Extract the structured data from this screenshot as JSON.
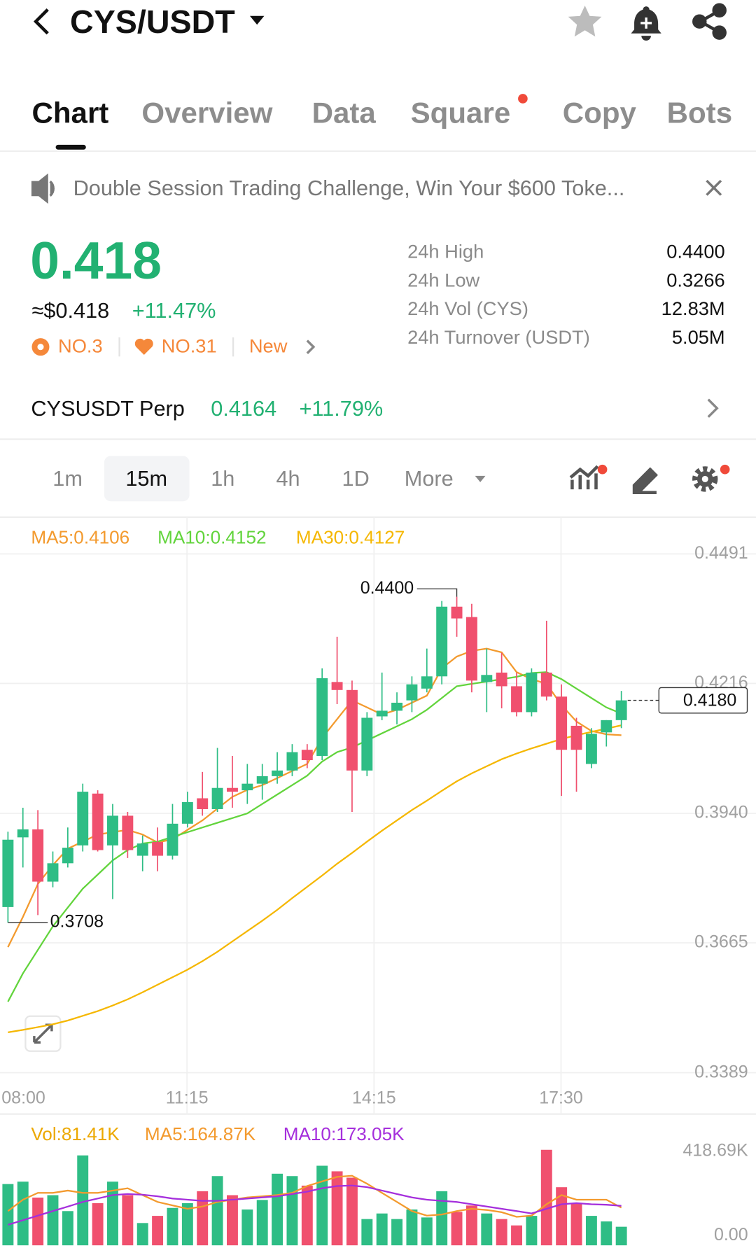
{
  "header": {
    "title": "CYS/USDT"
  },
  "tabs": {
    "items": [
      "Chart",
      "Overview",
      "Data",
      "Square",
      "Copy",
      "Bots"
    ],
    "active": 0
  },
  "banner": {
    "text": "Double Session Trading Challenge, Win Your $600 Toke..."
  },
  "price": {
    "last": "0.418",
    "usd": "≈$0.418",
    "change": "+11.47%",
    "badges": [
      "NO.3",
      "NO.31",
      "New"
    ]
  },
  "stats": [
    {
      "label": "24h High",
      "value": "0.4400"
    },
    {
      "label": "24h Low",
      "value": "0.3266"
    },
    {
      "label": "24h Vol (CYS)",
      "value": "12.83M"
    },
    {
      "label": "24h Turnover (USDT)",
      "value": "5.05M"
    }
  ],
  "perp": {
    "name": "CYSUSDT Perp",
    "price": "0.4164",
    "change": "+11.79%"
  },
  "intervals": {
    "items": [
      "1m",
      "15m",
      "1h",
      "4h",
      "1D",
      "More"
    ],
    "active": 1
  },
  "chart_data": [
    {
      "type": "candlestick",
      "up_color": "#2ebd85",
      "down_color": "#f0506e",
      "open": [
        0.3741,
        0.3889,
        0.3906,
        0.3795,
        0.3834,
        0.3872,
        0.3982,
        0.3872,
        0.3935,
        0.385,
        0.3879,
        0.385,
        0.3918,
        0.3972,
        0.3949,
        0.3994,
        0.3989,
        0.4003,
        0.4019,
        0.4031,
        0.4075,
        0.4062,
        0.4219,
        0.4202,
        0.4031,
        0.4146,
        0.4158,
        0.418,
        0.4205,
        0.4231,
        0.4379,
        0.4357,
        0.4219,
        0.4239,
        0.421,
        0.4155,
        0.4239,
        0.4188,
        0.4126,
        0.4045,
        0.4112,
        0.4138
      ],
      "high": [
        0.3901,
        0.3952,
        0.3947,
        0.3859,
        0.391,
        0.4003,
        0.3989,
        0.396,
        0.3943,
        0.3893,
        0.391,
        0.396,
        0.3986,
        0.4028,
        0.4079,
        0.4062,
        0.4045,
        0.4045,
        0.407,
        0.4087,
        0.4087,
        0.4248,
        0.4315,
        0.4222,
        0.4155,
        0.4239,
        0.4197,
        0.4231,
        0.429,
        0.4391,
        0.44,
        0.4385,
        0.429,
        0.4281,
        0.4239,
        0.4248,
        0.4349,
        0.4214,
        0.4143,
        0.4121,
        0.4138,
        0.42
      ],
      "low": [
        0.3708,
        0.3825,
        0.3724,
        0.3783,
        0.3825,
        0.3859,
        0.3859,
        0.3758,
        0.3845,
        0.3817,
        0.3817,
        0.3842,
        0.391,
        0.3935,
        0.3943,
        0.3952,
        0.396,
        0.3969,
        0.4003,
        0.4019,
        0.4036,
        0.4053,
        0.4172,
        0.3943,
        0.4019,
        0.4138,
        0.4129,
        0.4155,
        0.4197,
        0.4214,
        0.4315,
        0.4197,
        0.4155,
        0.4163,
        0.4146,
        0.4146,
        0.418,
        0.3977,
        0.3986,
        0.4036,
        0.4082,
        0.4121
      ],
      "close": [
        0.3884,
        0.3906,
        0.3795,
        0.3834,
        0.3867,
        0.3986,
        0.3862,
        0.3935,
        0.3862,
        0.3876,
        0.385,
        0.3918,
        0.3964,
        0.3949,
        0.3994,
        0.3986,
        0.4003,
        0.4019,
        0.4031,
        0.407,
        0.4053,
        0.4227,
        0.4202,
        0.4031,
        0.4143,
        0.4158,
        0.4175,
        0.4214,
        0.4231,
        0.4379,
        0.4354,
        0.4222,
        0.4234,
        0.421,
        0.4155,
        0.4239,
        0.4188,
        0.4075,
        0.4075,
        0.4109,
        0.4138,
        0.418
      ],
      "series": [
        {
          "name": "MA5:0.4106",
          "color": "#f39a2e",
          "values": [
            0.3656,
            0.372,
            0.379,
            0.383,
            0.3865,
            0.388,
            0.3895,
            0.39,
            0.3905,
            0.3895,
            0.3878,
            0.3885,
            0.3905,
            0.3925,
            0.395,
            0.3975,
            0.399,
            0.4,
            0.4015,
            0.403,
            0.4045,
            0.41,
            0.414,
            0.418,
            0.4165,
            0.415,
            0.416,
            0.4175,
            0.419,
            0.4248,
            0.4273,
            0.4285,
            0.429,
            0.4282,
            0.424,
            0.4225,
            0.4215,
            0.417,
            0.4135,
            0.4115,
            0.4108,
            0.4106
          ]
        },
        {
          "name": "MA10:0.4152",
          "color": "#62d43c",
          "values": [
            0.354,
            0.36,
            0.365,
            0.37,
            0.374,
            0.378,
            0.381,
            0.384,
            0.3862,
            0.3876,
            0.388,
            0.389,
            0.39,
            0.391,
            0.392,
            0.393,
            0.394,
            0.396,
            0.398,
            0.4,
            0.402,
            0.405,
            0.407,
            0.408,
            0.4095,
            0.411,
            0.4125,
            0.414,
            0.416,
            0.4185,
            0.421,
            0.4215,
            0.422,
            0.4225,
            0.423,
            0.4238,
            0.424,
            0.4225,
            0.4205,
            0.4185,
            0.4165,
            0.4152
          ]
        },
        {
          "name": "MA30:0.4127",
          "color": "#f5b700",
          "values": [
            0.3475,
            0.348,
            0.3486,
            0.3492,
            0.35,
            0.351,
            0.352,
            0.3532,
            0.3545,
            0.356,
            0.3576,
            0.3592,
            0.3608,
            0.3626,
            0.3646,
            0.3668,
            0.369,
            0.3712,
            0.3735,
            0.376,
            0.3784,
            0.3808,
            0.3833,
            0.3856,
            0.388,
            0.3903,
            0.3925,
            0.3947,
            0.3967,
            0.3988,
            0.4008,
            0.4025,
            0.404,
            0.4055,
            0.4067,
            0.4078,
            0.4088,
            0.4098,
            0.4106,
            0.4113,
            0.412,
            0.4127
          ]
        }
      ],
      "ylim": [
        0.3369,
        0.4569
      ],
      "yticks": [
        0.4491,
        0.4216,
        {
          "value": 0.394,
          "label": "0.3940"
        },
        0.3665,
        0.3389
      ],
      "xticks": [
        "08:00",
        "11:15",
        "14:15",
        "17:30"
      ],
      "grid": true,
      "annotations": {
        "high": "0.4400",
        "low": "0.3708",
        "last": "0.4180"
      }
    },
    {
      "type": "bar",
      "name": "Vol:81.41K",
      "legend_color": "#eca800",
      "values": [
        268650,
        279120,
        209340,
        219810,
        150030,
        394260,
        184920,
        279120,
        219810,
        97690,
        129090,
        163980,
        184920,
        237250,
        303540,
        219810,
        157000,
        198870,
        314010,
        303540,
        261680,
        348900,
        324480,
        296570,
        115140,
        139560,
        115140,
        157000,
        122120,
        237250,
        146540,
        174450,
        139560,
        115140,
        87230,
        129090,
        418690,
        254700,
        184920,
        129090,
        104670,
        81410
      ],
      "series": [
        {
          "name": "MA5:164.87K",
          "color": "#f39a2e",
          "values": [
            150000,
            200000,
            230000,
            230000,
            240000,
            230000,
            230000,
            240000,
            250000,
            220000,
            190000,
            175000,
            160000,
            170000,
            190000,
            200000,
            210000,
            215000,
            220000,
            230000,
            260000,
            280000,
            300000,
            305000,
            270000,
            230000,
            190000,
            150000,
            130000,
            135000,
            150000,
            160000,
            155000,
            145000,
            125000,
            130000,
            180000,
            220000,
            200000,
            200000,
            200000,
            164870
          ]
        },
        {
          "name": "MA10:173.05K",
          "color": "#a52fdc",
          "values": [
            90000,
            110000,
            130000,
            150000,
            170000,
            190000,
            205000,
            220000,
            225000,
            222000,
            215000,
            205000,
            200000,
            195000,
            195000,
            200000,
            205000,
            210000,
            215000,
            225000,
            235000,
            250000,
            260000,
            262000,
            255000,
            240000,
            225000,
            210000,
            200000,
            195000,
            190000,
            180000,
            170000,
            160000,
            150000,
            140000,
            160000,
            180000,
            185000,
            180000,
            178000,
            173050
          ]
        }
      ],
      "ylim": [
        0,
        418690
      ],
      "yticks": [
        {
          "value": 418690,
          "label": "418.69K"
        },
        {
          "value": 0,
          "label": "0.00"
        }
      ]
    }
  ]
}
